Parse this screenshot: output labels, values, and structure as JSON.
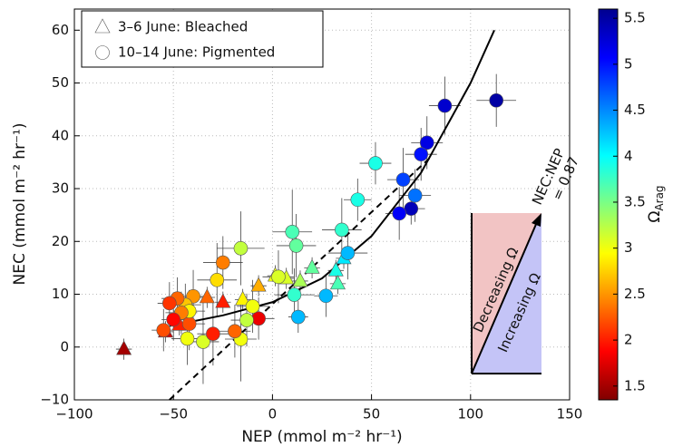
{
  "chart_data": {
    "type": "scatter",
    "x_label": "NEP (mmol m⁻² hr⁻¹)",
    "y_label": "NEC (mmol m⁻² hr⁻¹)",
    "xlim": [
      -100,
      150
    ],
    "ylim": [
      -10,
      64
    ],
    "xticks": [
      {
        "value": -100,
        "label": "−100"
      },
      {
        "value": -50,
        "label": "−50"
      },
      0,
      50,
      100,
      150
    ],
    "yticks": [
      {
        "value": -10,
        "label": "−10"
      },
      0,
      10,
      20,
      30,
      40,
      50,
      60
    ],
    "grid": true,
    "legend": "upper left",
    "series": [
      {
        "name": "3–6 June: Bleached",
        "marker": "triangle",
        "x": [
          -75,
          -54,
          -47,
          -33,
          -25,
          -15,
          -7,
          1.4,
          7,
          14,
          20,
          32,
          33,
          36
        ],
        "values": [
          -0.4,
          2.9,
          4.2,
          9.4,
          8.5,
          9.0,
          11.6,
          13.5,
          13,
          12.5,
          15,
          14.5,
          12,
          16.8
        ],
        "color_values": [
          1.5,
          1.7,
          2.0,
          2.3,
          2.0,
          2.9,
          2.6,
          3.0,
          3.1,
          3.3,
          3.6,
          3.9,
          3.7,
          4.1
        ],
        "xerr": [
          4,
          4,
          4,
          4,
          4,
          4,
          4,
          4,
          4,
          4,
          4,
          4,
          4,
          4
        ],
        "yerr": [
          2,
          2,
          2,
          2,
          2,
          2,
          2,
          2,
          2,
          2,
          2,
          2,
          2,
          2
        ]
      },
      {
        "name": "10–14 June: Pigmented",
        "marker": "circle",
        "x": [
          113,
          87,
          78,
          75,
          66,
          72,
          70,
          64,
          52,
          43,
          35,
          38,
          27,
          13,
          10,
          12,
          11,
          -16,
          -25,
          -28,
          -7,
          -13,
          -10,
          -16,
          -35,
          -43,
          -30,
          -19,
          -42,
          -40,
          -44,
          -42,
          -46,
          -48,
          -52,
          -55,
          -50,
          3
        ],
        "values": [
          46.7,
          45.7,
          38.7,
          36.5,
          31.7,
          28.7,
          26.2,
          25.3,
          34.8,
          27.9,
          22.2,
          17.8,
          9.7,
          5.7,
          21.8,
          19.2,
          9.9,
          18.7,
          16,
          12.7,
          5.4,
          5.1,
          7.7,
          1.5,
          1,
          1.6,
          2.5,
          3,
          4.4,
          9.6,
          8,
          6.8,
          6.5,
          9.2,
          8.3,
          3.2,
          5.2,
          13.3
        ],
        "color_values": [
          5.5,
          5.3,
          5.2,
          5.0,
          4.8,
          4.6,
          5.4,
          5.1,
          3.9,
          3.9,
          3.8,
          4.3,
          4.3,
          4.3,
          3.7,
          3.6,
          3.8,
          3.2,
          2.4,
          2.8,
          1.8,
          3.2,
          3.0,
          3.0,
          3.1,
          3.0,
          2.0,
          2.3,
          2.2,
          2.5,
          2.7,
          2.9,
          2.4,
          2.3,
          2.1,
          2.2,
          1.9,
          3.1
        ],
        "xerr": [
          10,
          8,
          8,
          8,
          8,
          8,
          7,
          7,
          8,
          7,
          10,
          10,
          6,
          5,
          10,
          10,
          10,
          12,
          10,
          10,
          8,
          8,
          8,
          8,
          8,
          8,
          8,
          8,
          8,
          8,
          8,
          8,
          8,
          8,
          6,
          6,
          6,
          8
        ],
        "yerr": [
          5,
          5.5,
          5,
          5,
          6,
          5,
          3,
          5,
          4,
          4,
          6,
          5,
          4,
          3,
          8,
          6,
          5,
          7,
          5,
          7,
          4,
          5,
          5,
          8,
          8,
          5,
          6,
          5,
          5,
          5,
          4,
          4,
          4,
          4,
          4,
          4,
          4,
          5
        ]
      }
    ],
    "fits": [
      {
        "style": "solid",
        "x": [
          -52,
          -25,
          0,
          25,
          50,
          75,
          100,
          112
        ],
        "values": [
          4,
          6,
          8.5,
          13,
          21,
          33,
          50,
          60
        ]
      },
      {
        "style": "dashed",
        "x": [
          -52,
          80
        ],
        "values": [
          -10,
          36
        ]
      }
    ],
    "colorbar": {
      "label": "Ω",
      "label_sub": "Arag",
      "clim": [
        1.35,
        5.6
      ],
      "ticks": [
        1.5,
        2,
        2.5,
        3,
        3.5,
        4,
        4.5,
        5,
        5.5
      ],
      "colormap": [
        "#800000",
        "#ff0000",
        "#ff8000",
        "#ffff00",
        "#80ff80",
        "#00ffff",
        "#0080ff",
        "#0000ff",
        "#00008f"
      ]
    },
    "inset": {
      "upper": "Decreasing Ω",
      "lower": "Increasing Ω",
      "ratio": "NEC:NEP",
      "ratio_value": "= 0.87"
    }
  }
}
